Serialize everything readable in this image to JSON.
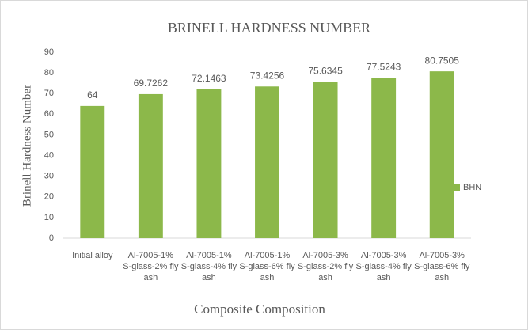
{
  "chart_data": {
    "type": "bar",
    "title": "BRINELL HARDNESS NUMBER",
    "x_label": "Composite Composition",
    "y_label": "Brinell Hardness Number",
    "categories": [
      "Initial alloy",
      "Al-7005-1% S-glass-2% fly ash",
      "Al-7005-1% S-glass-4% fly ash",
      "Al-7005-1% S-glass-6% fly ash",
      "Al-7005-3% S-glass-2% fly ash",
      "Al-7005-3% S-glass-4% fly ash",
      "Al-7005-3% S-glass-6% fly ash"
    ],
    "series": [
      {
        "name": "BHN",
        "color": "#8cb84a",
        "values": [
          64,
          69.7262,
          72.1463,
          73.4256,
          75.6345,
          77.5243,
          80.7505
        ]
      }
    ],
    "ylim": [
      0,
      90
    ],
    "yticks": [
      0,
      10,
      20,
      30,
      40,
      50,
      60,
      70,
      80,
      90
    ],
    "grid": false,
    "legend": "right"
  }
}
